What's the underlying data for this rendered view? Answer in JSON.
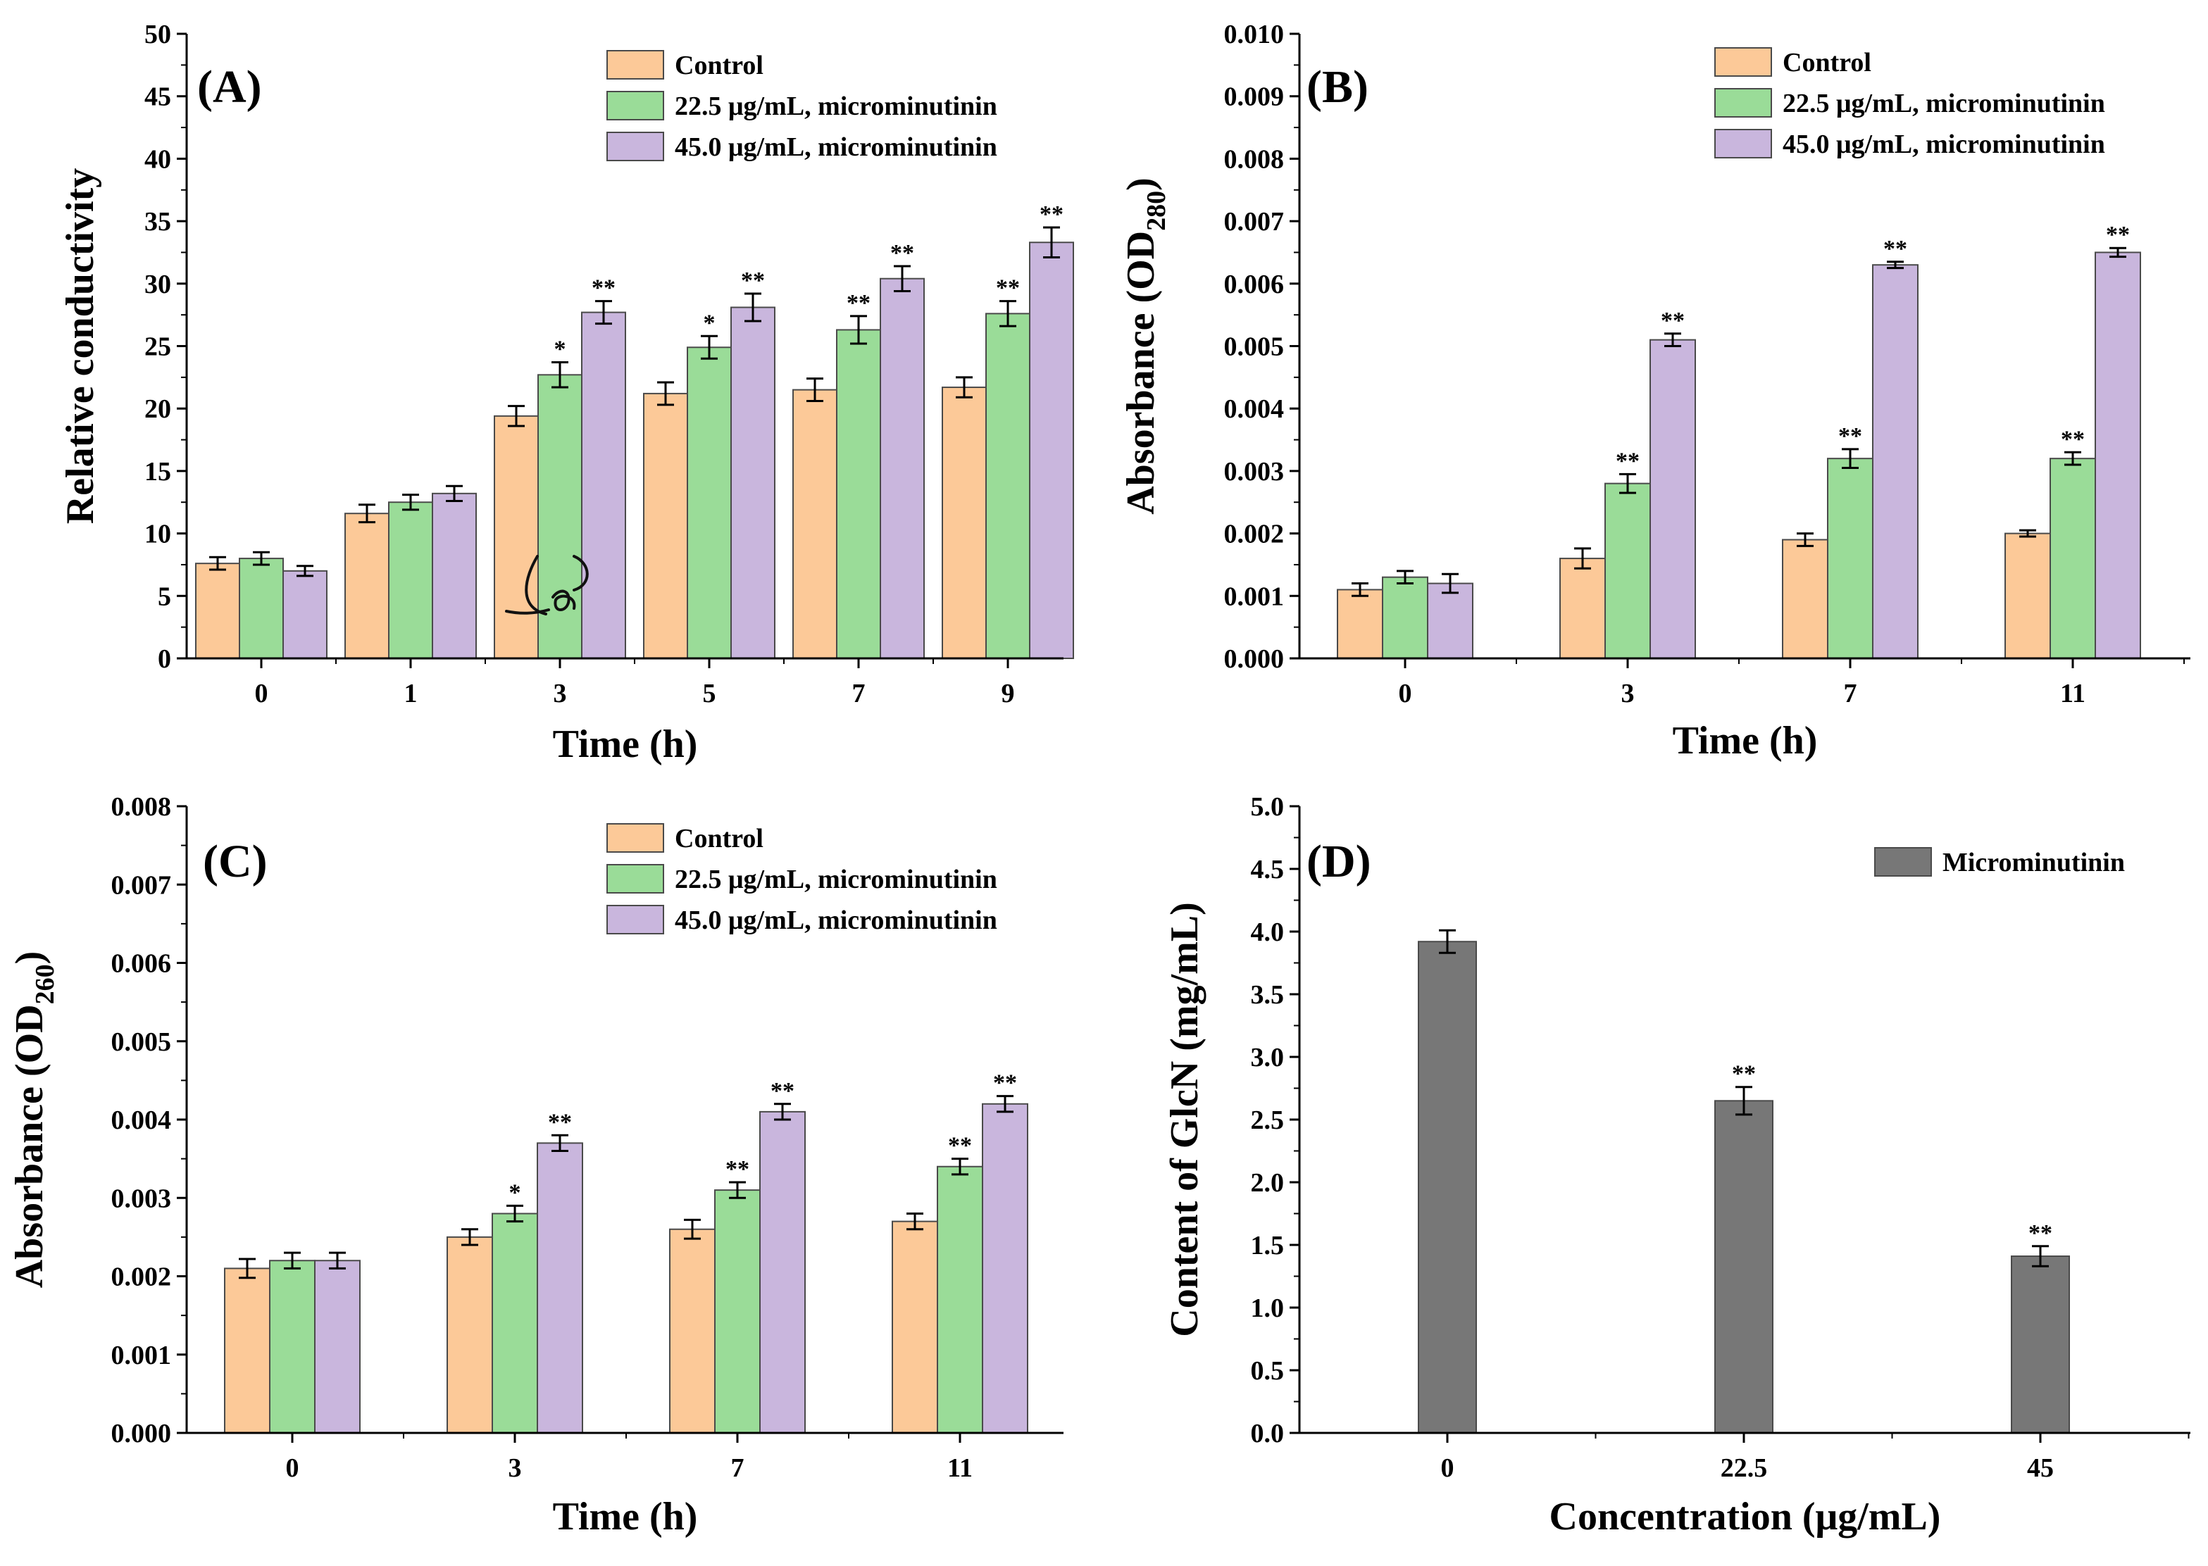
{
  "colors": {
    "control": "#fcc998",
    "low_dose": "#9adc98",
    "high_dose": "#c9b6dd",
    "microminutinin": "#777777",
    "bar_edge": "#4a4a4a"
  },
  "chart_data": [
    {
      "id": "panelA",
      "type": "bar",
      "panel_label": "(A)",
      "xlabel": "Time (h)",
      "ylabel": "Relative conductivity",
      "ylim": [
        0,
        50
      ],
      "ytick_step": 5,
      "ytick_decimals": 0,
      "categories": [
        "0",
        "1",
        "3",
        "5",
        "7",
        "9"
      ],
      "legend": [
        "Control",
        "22.5 μg/mL, microminutinin",
        "45.0 μg/mL, microminutinin"
      ],
      "series": [
        {
          "name": "Control",
          "color_key": "control",
          "values": [
            7.6,
            11.6,
            19.4,
            21.2,
            21.5,
            21.7
          ],
          "errors": [
            0.5,
            0.7,
            0.8,
            0.9,
            0.9,
            0.8
          ],
          "sig": [
            "",
            "",
            "",
            "",
            "",
            ""
          ]
        },
        {
          "name": "22.5 μg/mL, microminutinin",
          "color_key": "low_dose",
          "values": [
            8.0,
            12.5,
            22.7,
            24.9,
            26.3,
            27.6
          ],
          "errors": [
            0.5,
            0.6,
            1.0,
            0.9,
            1.1,
            1.0
          ],
          "sig": [
            "",
            "",
            "*",
            "*",
            "**",
            "**"
          ]
        },
        {
          "name": "45.0 μg/mL, microminutinin",
          "color_key": "high_dose",
          "values": [
            7.0,
            13.2,
            27.7,
            28.1,
            30.4,
            33.3
          ],
          "errors": [
            0.4,
            0.6,
            0.9,
            1.1,
            1.0,
            1.2
          ],
          "sig": [
            "",
            "",
            "**",
            "**",
            "**",
            "**"
          ]
        }
      ],
      "annotation": "handwritten scribble near x = 3"
    },
    {
      "id": "panelB",
      "type": "bar",
      "panel_label": "(B)",
      "xlabel": "Time (h)",
      "ylabel_main": "Absorbance (OD",
      "ylabel_sub": "280",
      "ylabel_close": ")",
      "ylim": [
        0,
        0.01
      ],
      "ytick_step": 0.001,
      "ytick_decimals": 3,
      "categories": [
        "0",
        "3",
        "7",
        "11"
      ],
      "legend": [
        "Control",
        "22.5 μg/mL, microminutinin",
        "45.0 μg/mL, microminutinin"
      ],
      "series": [
        {
          "name": "Control",
          "color_key": "control",
          "values": [
            0.0011,
            0.0016,
            0.0019,
            0.002
          ],
          "errors": [
            0.0001,
            0.00016,
            0.0001,
            5e-05
          ],
          "sig": [
            "",
            "",
            "",
            ""
          ]
        },
        {
          "name": "22.5 μg/mL, microminutinin",
          "color_key": "low_dose",
          "values": [
            0.0013,
            0.0028,
            0.0032,
            0.0032
          ],
          "errors": [
            0.0001,
            0.00015,
            0.00015,
            0.0001
          ],
          "sig": [
            "",
            "**",
            "**",
            "**"
          ]
        },
        {
          "name": "45.0 μg/mL, microminutinin",
          "color_key": "high_dose",
          "values": [
            0.0012,
            0.0051,
            0.0063,
            0.0065
          ],
          "errors": [
            0.00015,
            0.0001,
            5e-05,
            7e-05
          ],
          "sig": [
            "",
            "**",
            "**",
            "**"
          ]
        }
      ]
    },
    {
      "id": "panelC",
      "type": "bar",
      "panel_label": "(C)",
      "xlabel": "Time (h)",
      "ylabel_main": "Absorbance (OD",
      "ylabel_sub": "260",
      "ylabel_close": ")",
      "ylim": [
        0,
        0.008
      ],
      "ytick_step": 0.001,
      "ytick_decimals": 3,
      "categories": [
        "0",
        "3",
        "7",
        "11"
      ],
      "legend": [
        "Control",
        "22.5 μg/mL, microminutinin",
        "45.0 μg/mL, microminutinin"
      ],
      "series": [
        {
          "name": "Control",
          "color_key": "control",
          "values": [
            0.0021,
            0.0025,
            0.0026,
            0.0027
          ],
          "errors": [
            0.00012,
            0.0001,
            0.00012,
            0.0001
          ],
          "sig": [
            "",
            "",
            "",
            ""
          ]
        },
        {
          "name": "22.5 μg/mL, microminutinin",
          "color_key": "low_dose",
          "values": [
            0.0022,
            0.0028,
            0.0031,
            0.0034
          ],
          "errors": [
            0.0001,
            0.0001,
            0.0001,
            0.0001
          ],
          "sig": [
            "",
            "*",
            "**",
            "**"
          ]
        },
        {
          "name": "45.0 μg/mL, microminutinin",
          "color_key": "high_dose",
          "values": [
            0.0022,
            0.0037,
            0.0041,
            0.0042
          ],
          "errors": [
            0.0001,
            0.0001,
            0.0001,
            0.0001
          ],
          "sig": [
            "",
            "**",
            "**",
            "**"
          ]
        }
      ]
    },
    {
      "id": "panelD",
      "type": "bar",
      "panel_label": "(D)",
      "xlabel": "Concentration (μg/mL)",
      "ylabel": "Content of GlcN (mg/mL)",
      "ylim": [
        0,
        5
      ],
      "ytick_step": 0.5,
      "ytick_decimals": 1,
      "categories": [
        "0",
        "22.5",
        "45"
      ],
      "legend": [
        "Microminutinin"
      ],
      "series": [
        {
          "name": "Microminutinin",
          "color_key": "microminutinin",
          "values": [
            3.92,
            2.65,
            1.41
          ],
          "errors": [
            0.09,
            0.11,
            0.08
          ],
          "sig": [
            "",
            "**",
            "**"
          ]
        }
      ]
    }
  ]
}
